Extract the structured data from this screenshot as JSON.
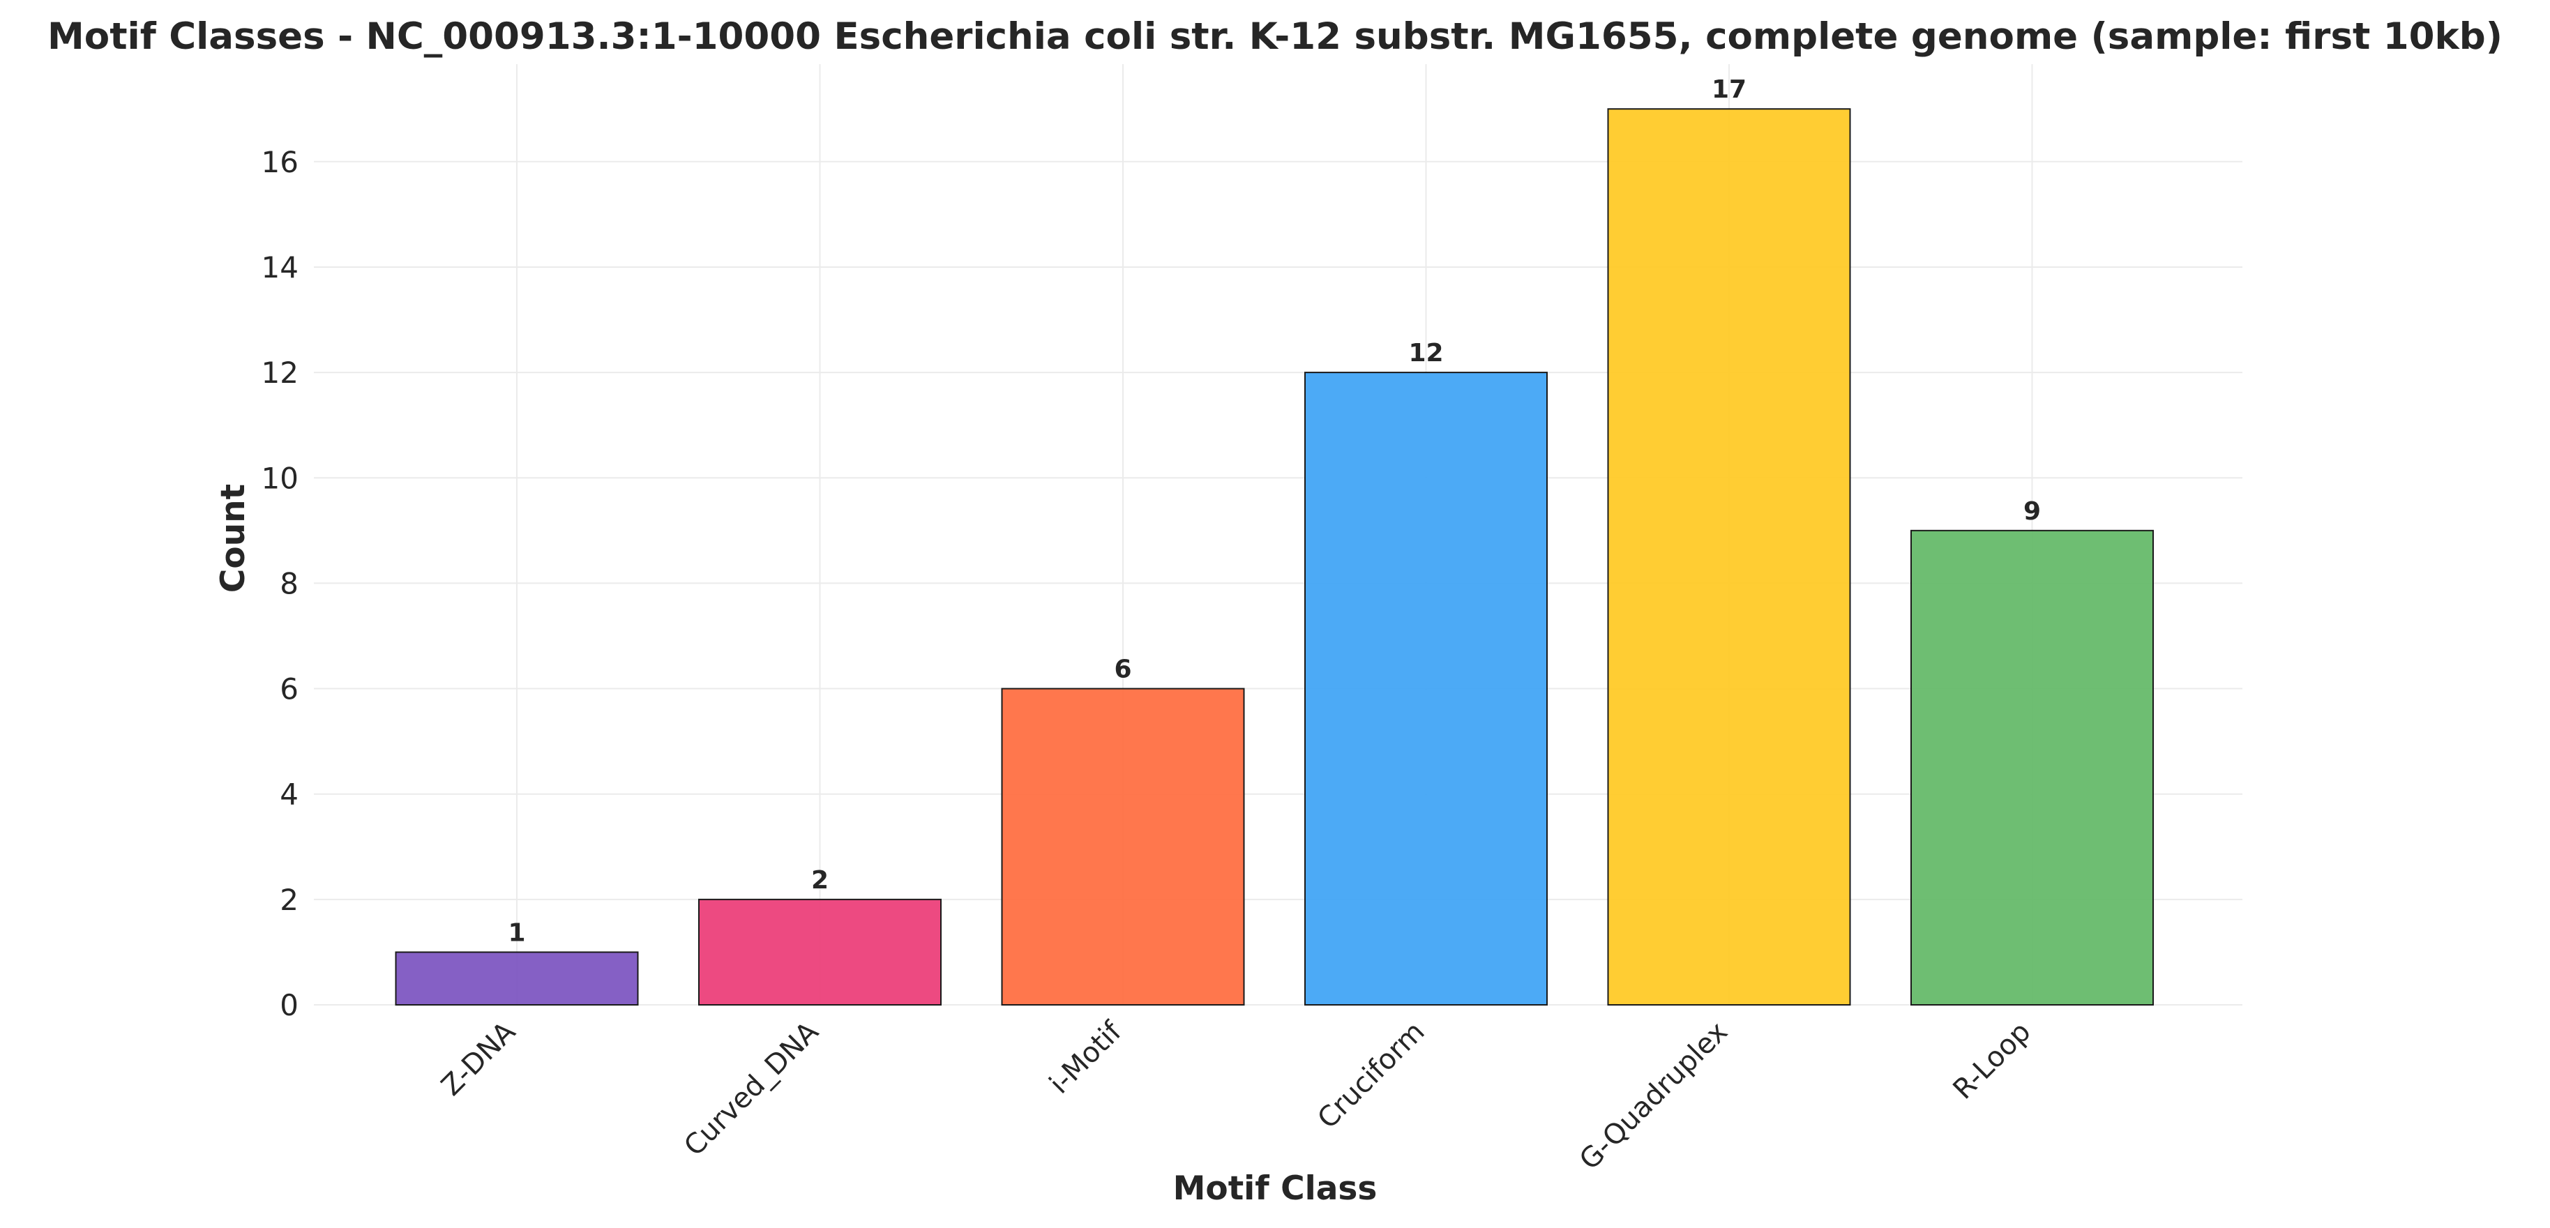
{
  "chart_data": {
    "type": "bar",
    "title": "Motif Classes - NC_000913.3:1-10000 Escherichia coli str. K-12 substr. MG1655, complete genome (sample: first 10kb)",
    "xlabel": "Motif Class",
    "ylabel": "Count",
    "categories": [
      "Z-DNA",
      "Curved_DNA",
      "i-Motif",
      "Cruciform",
      "G-Quadruplex",
      "R-Loop"
    ],
    "values": [
      1,
      2,
      6,
      12,
      17,
      9
    ],
    "colors": [
      "#7e57c2",
      "#ec407a",
      "#ff7043",
      "#42a5f5",
      "#ffca28",
      "#66bb6a"
    ],
    "ylim": [
      0,
      17.85
    ],
    "yticks": [
      0,
      2,
      4,
      6,
      8,
      10,
      12,
      14,
      16
    ],
    "grid": true,
    "legend": "none"
  }
}
